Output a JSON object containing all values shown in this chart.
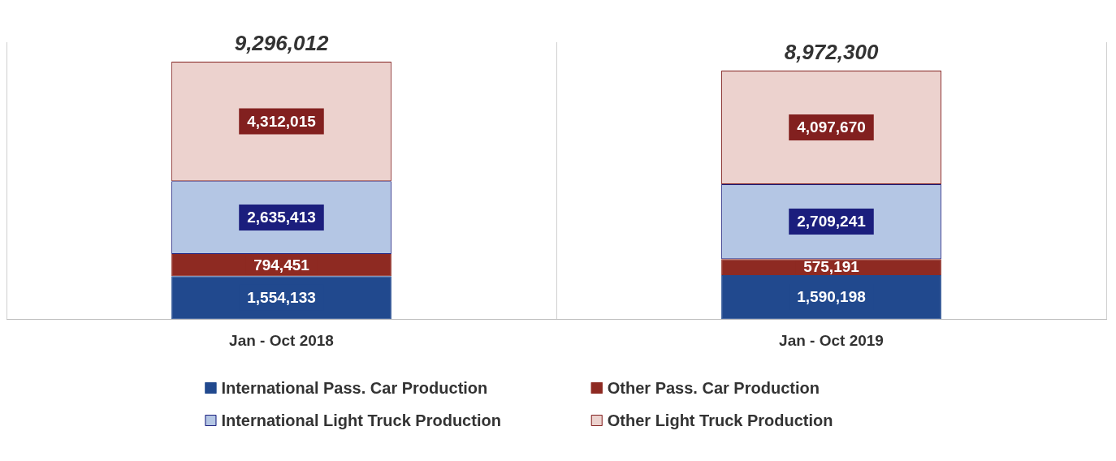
{
  "chart_data": {
    "type": "bar",
    "stacked": true,
    "categories": [
      "Jan - Oct 2018",
      "Jan - Oct 2019"
    ],
    "series": [
      {
        "name": "International Pass. Car Production",
        "color": "#21498e",
        "values": [
          1554133,
          1590198
        ],
        "value_labels": [
          "1,554,133",
          "1,590,198"
        ]
      },
      {
        "name": "Other Pass. Car Production",
        "color": "#8e2a22",
        "values": [
          794451,
          575191
        ],
        "value_labels": [
          "794,451",
          "575,191"
        ]
      },
      {
        "name": "International Light Truck Production",
        "color": "#b4c6e4",
        "values": [
          2635413,
          2709241
        ],
        "value_labels": [
          "2,635,413",
          "2,709,241"
        ]
      },
      {
        "name": "Other Light Truck Production",
        "color": "#ecd2ce",
        "values": [
          4312015,
          4097670
        ],
        "value_labels": [
          "4,312,015",
          "4,097,670"
        ]
      }
    ],
    "totals": [
      "9,296,012",
      "8,972,300"
    ],
    "grid": "x",
    "legend": "bottom",
    "tick_labels": "x"
  }
}
